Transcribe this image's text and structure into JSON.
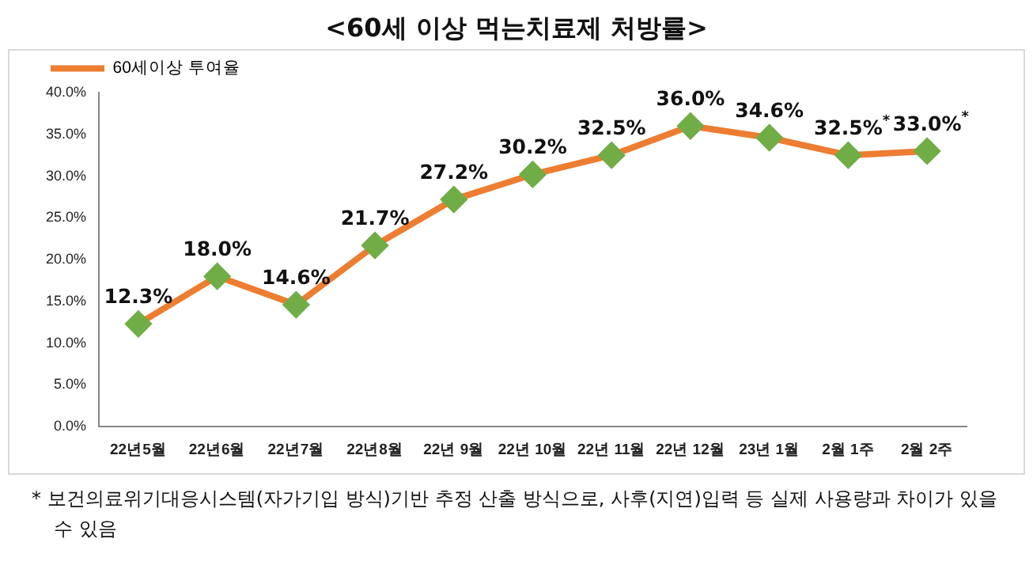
{
  "chart_data": {
    "type": "line",
    "title": "<60세 이상 먹는치료제 처방률>",
    "categories": [
      "22년5월",
      "22년6월",
      "22년7월",
      "22년8월",
      "22년 9월",
      "22년 10월",
      "22년 11월",
      "22년 12월",
      "23년 1월",
      "2월 1주",
      "2월 2주"
    ],
    "series": [
      {
        "name": "60세이상 투여율",
        "color": "#ed7d31",
        "colors": [
          "#70ad47",
          "#70ad47",
          "#70ad47",
          "#70ad47",
          "#70ad47",
          "#70ad47",
          "#70ad47",
          "#70ad47",
          "#70ad47",
          "#70ad47",
          "#70ad47"
        ],
        "values": [
          12.3,
          18.0,
          14.6,
          21.7,
          27.2,
          30.2,
          32.5,
          36.0,
          34.6,
          32.5,
          33.0
        ],
        "value_labels": [
          "12.3%",
          "18.0%",
          "14.6%",
          "21.7%",
          "27.2%",
          "30.2%",
          "32.5%",
          "36.0%",
          "34.6%",
          "32.5%$^{*}$",
          "33.0%$^{*}$"
        ]
      }
    ],
    "ylim": [
      0,
      40
    ],
    "yticks": [
      {
        "value": 0,
        "label": "0.0%"
      },
      {
        "value": 5,
        "label": "5.0%"
      },
      {
        "value": 10,
        "label": "10.0%"
      },
      {
        "value": 15,
        "label": "15.0%"
      },
      {
        "value": 20,
        "label": "20.0%"
      },
      {
        "value": 25,
        "label": "25.0%"
      },
      {
        "value": 30,
        "label": "30.0%"
      },
      {
        "value": 35,
        "label": "35.0%"
      },
      {
        "value": 40,
        "label": "40.0%"
      }
    ],
    "grid": false,
    "legend": "top left",
    "marker": "diamond",
    "line_style": "solid",
    "annotations": [
      "* 보건의료위기대응시스템(자가기입 방식)기반 추정 산출 방식으로, 사후(지연)입력 등 실제 사용량과 차이가 있을 수 있음"
    ]
  }
}
